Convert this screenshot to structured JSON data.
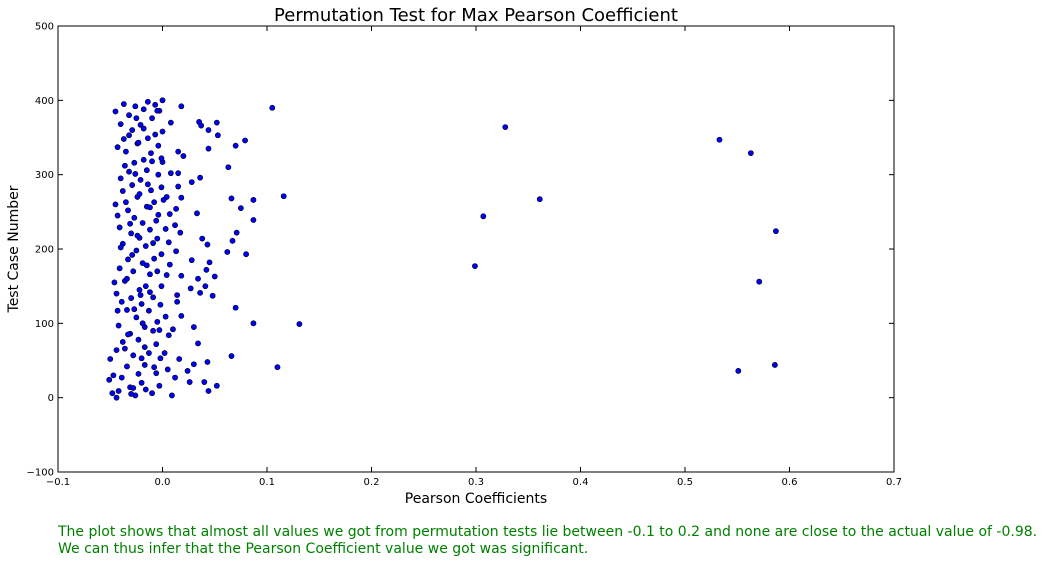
{
  "chart_data": {
    "type": "scatter",
    "title": "Permutation Test for Max Pearson Coefficient",
    "xlabel": "Pearson Coefficients",
    "ylabel": "Test Case Number",
    "xlim": [
      -0.1,
      0.7
    ],
    "ylim": [
      -100,
      500
    ],
    "x_ticks": [
      "−0.1",
      "0.0",
      "0.1",
      "0.2",
      "0.3",
      "0.4",
      "0.5",
      "0.6",
      "0.7"
    ],
    "y_ticks": [
      "−100",
      "0",
      "100",
      "200",
      "300",
      "400",
      "500"
    ],
    "x_tick_values": [
      -0.1,
      0.0,
      0.1,
      0.2,
      0.3,
      0.4,
      0.5,
      0.6,
      0.7
    ],
    "y_tick_values": [
      -100,
      0,
      100,
      200,
      300,
      400,
      500
    ],
    "grid": false,
    "marker_color": "#0000ff",
    "marker_edge_color": "#000000",
    "points": [
      {
        "x": 0.105,
        "y": 390
      },
      {
        "x": 0.328,
        "y": 364
      },
      {
        "x": 0.533,
        "y": 347
      },
      {
        "x": 0.563,
        "y": 329
      },
      {
        "x": 0.361,
        "y": 267
      },
      {
        "x": 0.307,
        "y": 244
      },
      {
        "x": 0.587,
        "y": 224
      },
      {
        "x": 0.299,
        "y": 177
      },
      {
        "x": 0.571,
        "y": 156
      },
      {
        "x": 0.586,
        "y": 44
      },
      {
        "x": 0.551,
        "y": 36
      },
      {
        "x": 0.131,
        "y": 99
      },
      {
        "x": 0.11,
        "y": 41
      },
      {
        "x": 0.116,
        "y": 271
      },
      {
        "x": 0.087,
        "y": 266
      },
      {
        "x": 0.087,
        "y": 239
      },
      {
        "x": 0.087,
        "y": 100
      },
      {
        "x": 0.079,
        "y": 346
      },
      {
        "x": 0.08,
        "y": 193
      },
      {
        "x": 0.075,
        "y": 255
      },
      {
        "x": 0.071,
        "y": 222
      },
      {
        "x": 0.07,
        "y": 339
      },
      {
        "x": 0.07,
        "y": 121
      },
      {
        "x": 0.066,
        "y": 268
      },
      {
        "x": 0.067,
        "y": 211
      },
      {
        "x": 0.066,
        "y": 56
      },
      {
        "x": 0.063,
        "y": 310
      },
      {
        "x": 0.062,
        "y": 196
      },
      {
        "x": 0.052,
        "y": 370
      },
      {
        "x": 0.053,
        "y": 353
      },
      {
        "x": 0.05,
        "y": 163
      },
      {
        "x": 0.048,
        "y": 137
      },
      {
        "x": 0.052,
        "y": 16
      },
      {
        "x": 0.044,
        "y": 360
      },
      {
        "x": 0.044,
        "y": 335
      },
      {
        "x": 0.045,
        "y": 182
      },
      {
        "x": 0.042,
        "y": 172
      },
      {
        "x": 0.043,
        "y": 206
      },
      {
        "x": 0.041,
        "y": 150
      },
      {
        "x": 0.043,
        "y": 48
      },
      {
        "x": 0.044,
        "y": 9
      },
      {
        "x": 0.04,
        "y": 21
      },
      {
        "x": 0.035,
        "y": 371
      },
      {
        "x": 0.037,
        "y": 366
      },
      {
        "x": 0.036,
        "y": 296
      },
      {
        "x": 0.038,
        "y": 214
      },
      {
        "x": 0.033,
        "y": 248
      },
      {
        "x": 0.036,
        "y": 141
      },
      {
        "x": 0.034,
        "y": 160
      },
      {
        "x": 0.034,
        "y": 73
      },
      {
        "x": 0.03,
        "y": 45
      },
      {
        "x": 0.03,
        "y": 95
      },
      {
        "x": 0.028,
        "y": 290
      },
      {
        "x": 0.028,
        "y": 185
      },
      {
        "x": 0.027,
        "y": 147
      },
      {
        "x": 0.026,
        "y": 21
      },
      {
        "x": 0.024,
        "y": 36
      },
      {
        "x": 0.02,
        "y": 325
      },
      {
        "x": 0.018,
        "y": 392
      },
      {
        "x": 0.018,
        "y": 269
      },
      {
        "x": 0.017,
        "y": 222
      },
      {
        "x": 0.018,
        "y": 164
      },
      {
        "x": 0.018,
        "y": 110
      },
      {
        "x": 0.016,
        "y": 52
      },
      {
        "x": 0.015,
        "y": 331
      },
      {
        "x": 0.015,
        "y": 302
      },
      {
        "x": 0.015,
        "y": 284
      },
      {
        "x": 0.013,
        "y": 254
      },
      {
        "x": 0.012,
        "y": 232
      },
      {
        "x": 0.013,
        "y": 197
      },
      {
        "x": 0.014,
        "y": 138
      },
      {
        "x": 0.014,
        "y": 129
      },
      {
        "x": 0.01,
        "y": 92
      },
      {
        "x": 0.012,
        "y": 27
      },
      {
        "x": 0.009,
        "y": 3
      },
      {
        "x": 0.008,
        "y": 370
      },
      {
        "x": 0.008,
        "y": 302
      },
      {
        "x": 0.007,
        "y": 247
      },
      {
        "x": 0.006,
        "y": 209
      },
      {
        "x": 0.007,
        "y": 179
      },
      {
        "x": 0.006,
        "y": 84
      },
      {
        "x": 0.005,
        "y": 38
      },
      {
        "x": 0.004,
        "y": 270
      },
      {
        "x": 0.003,
        "y": 227
      },
      {
        "x": 0.003,
        "y": 109
      },
      {
        "x": 0.002,
        "y": 60
      },
      {
        "x": 0.0,
        "y": 400
      },
      {
        "x": 0.0,
        "y": 358
      },
      {
        "x": 0.0,
        "y": 317
      },
      {
        "x": -0.001,
        "y": 283
      },
      {
        "x": -0.001,
        "y": 193
      },
      {
        "x": -0.001,
        "y": 150
      },
      {
        "x": -0.002,
        "y": 125
      },
      {
        "x": -0.002,
        "y": 53
      },
      {
        "x": -0.003,
        "y": 16
      },
      {
        "x": -0.003,
        "y": 386
      },
      {
        "x": -0.004,
        "y": 339
      },
      {
        "x": -0.004,
        "y": 300
      },
      {
        "x": -0.004,
        "y": 246
      },
      {
        "x": -0.005,
        "y": 214
      },
      {
        "x": -0.005,
        "y": 170
      },
      {
        "x": -0.005,
        "y": 102
      },
      {
        "x": -0.006,
        "y": 72
      },
      {
        "x": -0.006,
        "y": 33
      },
      {
        "x": -0.007,
        "y": 394
      },
      {
        "x": -0.007,
        "y": 354
      },
      {
        "x": -0.008,
        "y": 263
      },
      {
        "x": -0.008,
        "y": 187
      },
      {
        "x": -0.009,
        "y": 135
      },
      {
        "x": -0.009,
        "y": 90
      },
      {
        "x": -0.01,
        "y": 6
      },
      {
        "x": -0.01,
        "y": 376
      },
      {
        "x": -0.011,
        "y": 329
      },
      {
        "x": -0.011,
        "y": 279
      },
      {
        "x": -0.012,
        "y": 226
      },
      {
        "x": -0.012,
        "y": 166
      },
      {
        "x": -0.013,
        "y": 117
      },
      {
        "x": -0.013,
        "y": 60
      },
      {
        "x": -0.014,
        "y": 398
      },
      {
        "x": -0.014,
        "y": 349
      },
      {
        "x": -0.015,
        "y": 306
      },
      {
        "x": -0.015,
        "y": 257
      },
      {
        "x": -0.016,
        "y": 204
      },
      {
        "x": -0.016,
        "y": 150
      },
      {
        "x": -0.017,
        "y": 95
      },
      {
        "x": -0.017,
        "y": 44
      },
      {
        "x": -0.018,
        "y": 388
      },
      {
        "x": -0.018,
        "y": 320
      },
      {
        "x": -0.019,
        "y": 235
      },
      {
        "x": -0.019,
        "y": 181
      },
      {
        "x": -0.02,
        "y": 126
      },
      {
        "x": -0.02,
        "y": 20
      },
      {
        "x": -0.021,
        "y": 367
      },
      {
        "x": -0.021,
        "y": 293
      },
      {
        "x": -0.022,
        "y": 215
      },
      {
        "x": -0.022,
        "y": 145
      },
      {
        "x": -0.023,
        "y": 78
      },
      {
        "x": -0.023,
        "y": 32
      },
      {
        "x": -0.024,
        "y": 342
      },
      {
        "x": -0.024,
        "y": 270
      },
      {
        "x": -0.025,
        "y": 198
      },
      {
        "x": -0.025,
        "y": 108
      },
      {
        "x": -0.026,
        "y": 3
      },
      {
        "x": -0.026,
        "y": 392
      },
      {
        "x": -0.027,
        "y": 316
      },
      {
        "x": -0.027,
        "y": 242
      },
      {
        "x": -0.028,
        "y": 170
      },
      {
        "x": -0.028,
        "y": 57
      },
      {
        "x": -0.029,
        "y": 360
      },
      {
        "x": -0.029,
        "y": 286
      },
      {
        "x": -0.03,
        "y": 221
      },
      {
        "x": -0.03,
        "y": 134
      },
      {
        "x": -0.031,
        "y": 86
      },
      {
        "x": -0.031,
        "y": 14
      },
      {
        "x": -0.032,
        "y": 380
      },
      {
        "x": -0.032,
        "y": 304
      },
      {
        "x": -0.033,
        "y": 252
      },
      {
        "x": -0.033,
        "y": 186
      },
      {
        "x": -0.034,
        "y": 118
      },
      {
        "x": -0.034,
        "y": 42
      },
      {
        "x": -0.035,
        "y": 331
      },
      {
        "x": -0.035,
        "y": 263
      },
      {
        "x": -0.036,
        "y": 157
      },
      {
        "x": -0.036,
        "y": 66
      },
      {
        "x": -0.037,
        "y": 395
      },
      {
        "x": -0.037,
        "y": 348
      },
      {
        "x": -0.038,
        "y": 278
      },
      {
        "x": -0.038,
        "y": 207
      },
      {
        "x": -0.039,
        "y": 129
      },
      {
        "x": -0.039,
        "y": 27
      },
      {
        "x": -0.04,
        "y": 368
      },
      {
        "x": -0.04,
        "y": 295
      },
      {
        "x": -0.041,
        "y": 229
      },
      {
        "x": -0.041,
        "y": 174
      },
      {
        "x": -0.042,
        "y": 97
      },
      {
        "x": -0.042,
        "y": 9
      },
      {
        "x": -0.043,
        "y": 337
      },
      {
        "x": -0.043,
        "y": 245
      },
      {
        "x": -0.044,
        "y": 140
      },
      {
        "x": -0.044,
        "y": 64
      },
      {
        "x": -0.045,
        "y": 385
      },
      {
        "x": -0.045,
        "y": 260
      },
      {
        "x": -0.046,
        "y": 155
      },
      {
        "x": -0.047,
        "y": 30
      },
      {
        "x": -0.048,
        "y": 6
      },
      {
        "x": -0.05,
        "y": 52
      },
      {
        "x": -0.051,
        "y": 24
      },
      {
        "x": -0.044,
        "y": 0
      },
      {
        "x": -0.033,
        "y": 85
      },
      {
        "x": -0.029,
        "y": 192
      },
      {
        "x": -0.022,
        "y": 274
      },
      {
        "x": -0.018,
        "y": 362
      },
      {
        "x": -0.012,
        "y": 142
      },
      {
        "x": -0.006,
        "y": 238
      },
      {
        "x": -0.001,
        "y": 322
      },
      {
        "x": 0.004,
        "y": 165
      },
      {
        "x": -0.036,
        "y": 312
      },
      {
        "x": -0.027,
        "y": 119
      },
      {
        "x": -0.02,
        "y": 53
      },
      {
        "x": -0.014,
        "y": 287
      },
      {
        "x": -0.009,
        "y": 208
      },
      {
        "x": -0.003,
        "y": 91
      },
      {
        "x": -0.04,
        "y": 202
      },
      {
        "x": -0.025,
        "y": 376
      },
      {
        "x": -0.016,
        "y": 11
      },
      {
        "x": -0.01,
        "y": 318
      },
      {
        "x": -0.031,
        "y": 234
      },
      {
        "x": -0.019,
        "y": 100
      },
      {
        "x": -0.034,
        "y": 160
      },
      {
        "x": -0.023,
        "y": 343
      },
      {
        "x": -0.008,
        "y": 41
      },
      {
        "x": 0.001,
        "y": 266
      },
      {
        "x": -0.028,
        "y": 13
      },
      {
        "x": -0.038,
        "y": 75
      },
      {
        "x": -0.015,
        "y": 178
      },
      {
        "x": -0.005,
        "y": 386
      },
      {
        "x": -0.032,
        "y": 353
      },
      {
        "x": -0.021,
        "y": 138
      },
      {
        "x": -0.012,
        "y": 256
      },
      {
        "x": -0.043,
        "y": 117
      },
      {
        "x": -0.026,
        "y": 301
      },
      {
        "x": -0.017,
        "y": 68
      },
      {
        "x": -0.03,
        "y": 5
      },
      {
        "x": -0.024,
        "y": 218
      }
    ]
  },
  "caption": {
    "line1": "The plot shows that almost all values we got from permutation tests lie between -0.1 to 0.2 and none are close to the actual value of -0.98.",
    "line2": "We can thus infer that the Pearson Coefficient value we got was significant."
  }
}
